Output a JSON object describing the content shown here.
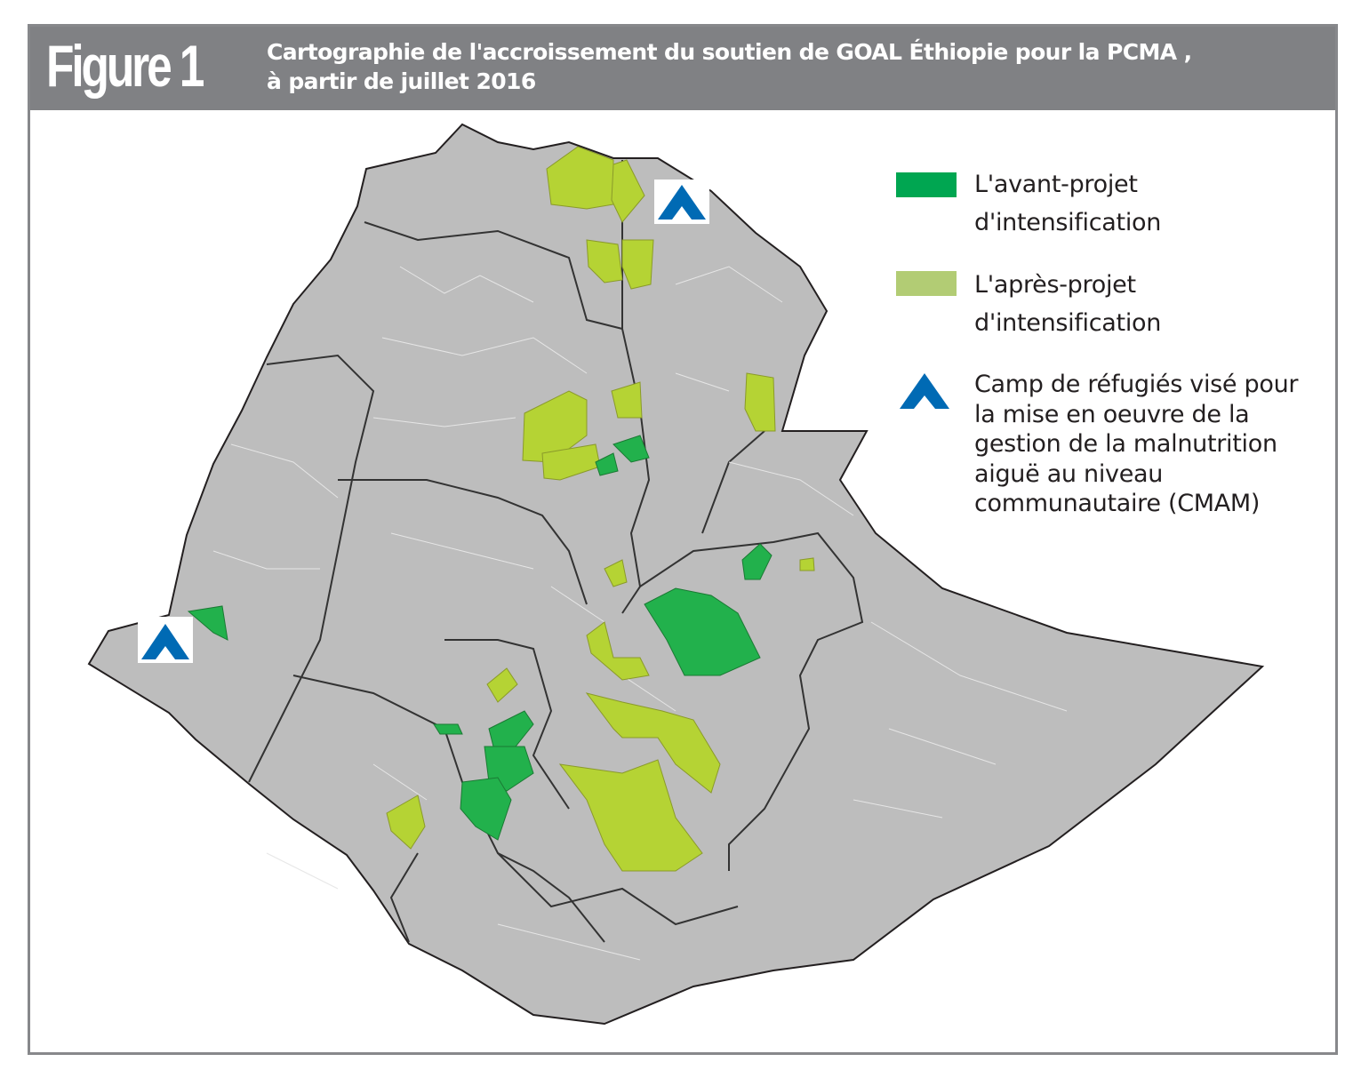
{
  "header": {
    "figure_label": "Figure 1",
    "title_line1": "Cartographie de l'accroissement du soutien de GOAL Éthiopie  pour la PCMA ,",
    "title_line2": "à partir de juillet 2016"
  },
  "legend": {
    "items": [
      {
        "label_line1": "L'avant-projet",
        "label_line2": "d'intensification",
        "color": "#00a651"
      },
      {
        "label_line1": "L'après-projet",
        "label_line2": "d'intensification",
        "color": "#b2cc74"
      },
      {
        "lines": [
          "Camp de réfugiés visé pour",
          "la mise  en oeuvre de  la",
          "gestion de la malnutrition",
          "aiguë au niveau",
          "communautaire  (CMAM)"
        ],
        "icon": "refugee-camp-triangle-icon",
        "color": "#006ab4"
      }
    ]
  },
  "map": {
    "base_color": "#bdbdbd",
    "pre_scale_up_color": "#22b14c",
    "post_scale_up_color": "#b5d334"
  }
}
